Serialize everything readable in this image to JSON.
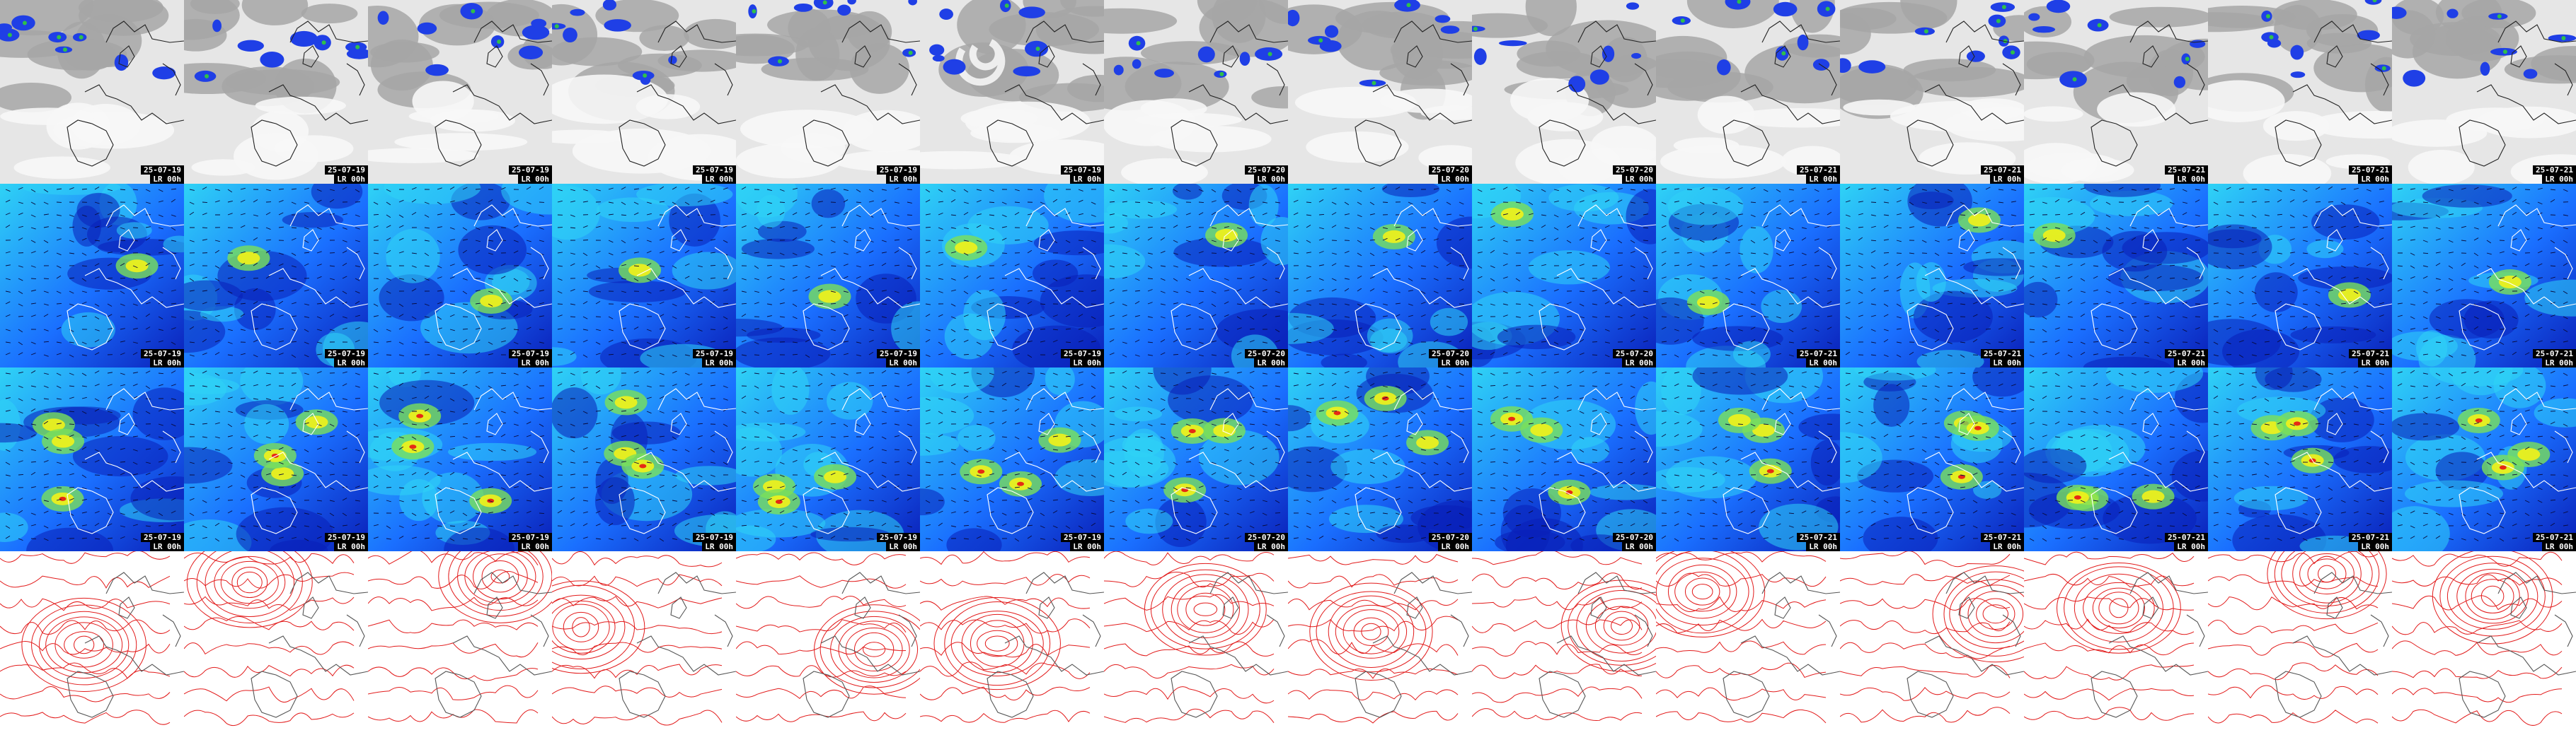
{
  "layout": {
    "rows": [
      "cloud-precip",
      "wind-low",
      "wind-high",
      "pressure"
    ],
    "columns": 14
  },
  "panels": {
    "date_stamps": [
      "25-07-19",
      "25-07-19",
      "25-07-19",
      "25-07-19",
      "25-07-19",
      "25-07-19",
      "25-07-20",
      "25-07-20",
      "25-07-20",
      "25-07-21",
      "25-07-21",
      "25-07-21",
      "25-07-21",
      "25-07-21"
    ],
    "lead_label": "LR 00h"
  },
  "colors": {
    "cloud_grey": "#a6a6a6",
    "cloud_light": "#e6e6e6",
    "precip_blue": "#1f3fe6",
    "precip_green": "#2fbf4a",
    "wind_dark": "#0a1fb8",
    "wind_mid": "#1a6fff",
    "wind_cyan": "#2fd3f5",
    "wind_yellow": "#f2f21a",
    "wind_red": "#e62a14",
    "isobar_red": "#e21b1b",
    "coast": "#ffffff"
  },
  "icons": {
    "coastline": "coastline-outline",
    "wind_vector": "wind-arrow-icon"
  }
}
